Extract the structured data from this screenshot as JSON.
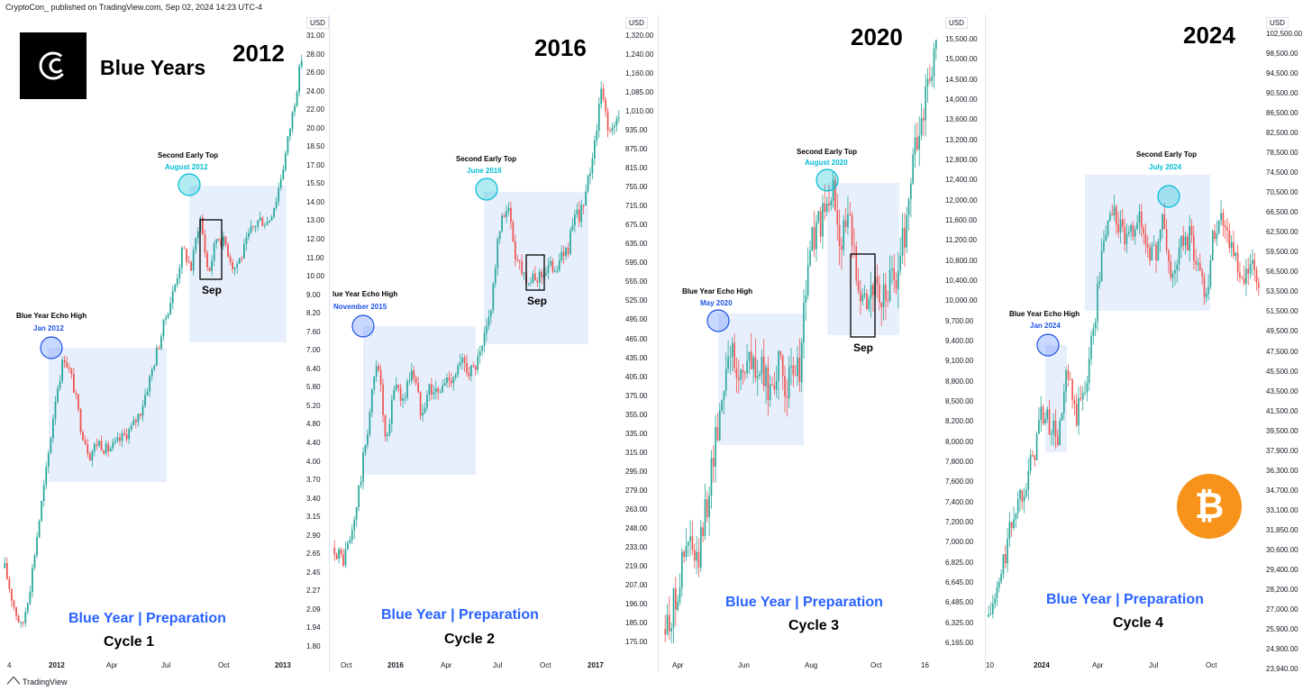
{
  "header": {
    "publisher": "CryptoCon_ published on TradingView.com, Sep 02, 2024 14:23 UTC-4"
  },
  "footer": {
    "brand": "TradingView"
  },
  "brand": {
    "title": "Blue Years",
    "logo_icon": "cryptocon-logo-icon"
  },
  "colors": {
    "up": "#26a69a",
    "down": "#ef5350",
    "range_fill": "#e8effc",
    "circle_blue": "#1e53e5",
    "circle_cyan": "#00bcd4",
    "text_blue": "#2962ff",
    "btc": "#f7931a"
  },
  "chart_data": [
    {
      "type": "candlestick",
      "title": "2012",
      "unit": "USD",
      "y_scale": "log",
      "ylim": [
        1.8,
        31.0
      ],
      "yticks": [
        "31.00",
        "28.00",
        "26.00",
        "24.00",
        "22.00",
        "20.00",
        "18.50",
        "17.00",
        "15.50",
        "14.00",
        "13.00",
        "12.00",
        "11.00",
        "10.00",
        "9.00",
        "8.20",
        "7.60",
        "7.00",
        "6.40",
        "5.80",
        "5.20",
        "4.80",
        "4.40",
        "4.00",
        "3.70",
        "3.40",
        "3.15",
        "2.90",
        "2.65",
        "2.45",
        "2.27",
        "2.09",
        "1.94",
        "1.80"
      ],
      "xticks": [
        {
          "label": "4",
          "bold": false
        },
        {
          "label": "2012",
          "bold": true
        },
        {
          "label": "Apr",
          "bold": false
        },
        {
          "label": "Jul",
          "bold": false
        },
        {
          "label": "Oct",
          "bold": false
        },
        {
          "label": "2013",
          "bold": true
        }
      ],
      "echo_high": {
        "label": "Blue Year Echo High",
        "date": "Jan 2012"
      },
      "early_top": {
        "label": "Second Early Top",
        "date": "August 2012"
      },
      "sep_label": "Sep",
      "caption": "Blue Year | Preparation",
      "cycle": "Cycle 1",
      "path": [
        2.6,
        2.2,
        1.95,
        2.4,
        3.2,
        4.2,
        5.8,
        7.0,
        6.2,
        5.0,
        4.4,
        4.7,
        4.5,
        4.6,
        4.8,
        5.0,
        5.4,
        6.2,
        7.2,
        8.4,
        9.6,
        11.5,
        10.5,
        13.5,
        10.2,
        12.2,
        11.8,
        10.5,
        11.2,
        12.5,
        13.2,
        13.0,
        14.5,
        17.5,
        22.0,
        28.0
      ]
    },
    {
      "type": "candlestick",
      "title": "2016",
      "unit": "USD",
      "y_scale": "log",
      "ylim": [
        175.0,
        1320.0
      ],
      "yticks": [
        "1,320.00",
        "1,240.00",
        "1,160.00",
        "1,085.00",
        "1,010.00",
        "935.00",
        "875.00",
        "815.00",
        "755.00",
        "715.00",
        "675.00",
        "635.00",
        "595.00",
        "555.00",
        "525.00",
        "495.00",
        "465.00",
        "435.00",
        "405.00",
        "375.00",
        "355.00",
        "335.00",
        "315.00",
        "295.00",
        "279.00",
        "263.00",
        "248.00",
        "233.00",
        "219.00",
        "207.00",
        "196.00",
        "185.00",
        "175.00"
      ],
      "xticks": [
        {
          "label": "Oct",
          "bold": false
        },
        {
          "label": "2016",
          "bold": true
        },
        {
          "label": "Apr",
          "bold": false
        },
        {
          "label": "Jul",
          "bold": false
        },
        {
          "label": "Oct",
          "bold": false
        },
        {
          "label": "2017",
          "bold": true
        }
      ],
      "echo_high": {
        "label": "lue Year Echo High",
        "date": "November 2015"
      },
      "early_top": {
        "label": "Second Early Top",
        "date": "June 2016"
      },
      "sep_label": "Sep",
      "caption": "Blue Year | Preparation",
      "cycle": "Cycle 2",
      "path": [
        240,
        230,
        250,
        300,
        370,
        460,
        330,
        420,
        390,
        440,
        380,
        410,
        400,
        420,
        430,
        445,
        430,
        455,
        520,
        670,
        760,
        640,
        600,
        580,
        600,
        610,
        620,
        650,
        720,
        750,
        900,
        1100,
        950,
        1000
      ]
    },
    {
      "type": "candlestick",
      "title": "2020",
      "unit": "USD",
      "y_scale": "log",
      "ylim": [
        6165.0,
        15500.0
      ],
      "yticks": [
        "15,500.00",
        "15,000.00",
        "14,500.00",
        "14,000.00",
        "13,600.00",
        "13,200.00",
        "12,800.00",
        "12,400.00",
        "12,000.00",
        "11,600.00",
        "11,200.00",
        "10,800.00",
        "10,400.00",
        "10,000.00",
        "9,700.00",
        "9,400.00",
        "9,100.00",
        "8,800.00",
        "8,500.00",
        "8,200.00",
        "8,000.00",
        "7,800.00",
        "7,600.00",
        "7,400.00",
        "7,200.00",
        "7,000.00",
        "6,825.00",
        "6,645.00",
        "6,485.00",
        "6,325.00",
        "6,165.00"
      ],
      "xticks": [
        {
          "label": "Apr",
          "bold": false
        },
        {
          "label": "Jun",
          "bold": false
        },
        {
          "label": "Aug",
          "bold": false
        },
        {
          "label": "Oct",
          "bold": false
        },
        {
          "label": "16",
          "bold": false
        }
      ],
      "echo_high": {
        "label": "Blue Year Echo High",
        "date": "May 2020"
      },
      "early_top": {
        "label": "Second Early Top",
        "date": "August 2020"
      },
      "sep_label": "Sep",
      "caption": "Blue Year | Preparation",
      "cycle": "Cycle 3",
      "path": [
        6300,
        6500,
        6900,
        7200,
        6900,
        7500,
        8200,
        8900,
        9800,
        9200,
        9500,
        9400,
        9300,
        9100,
        9400,
        9200,
        9150,
        9500,
        11200,
        11600,
        11800,
        12300,
        11500,
        11700,
        11000,
        10400,
        10700,
        10300,
        10600,
        10800,
        11500,
        12800,
        13600,
        14500,
        15500
      ]
    },
    {
      "type": "candlestick",
      "title": "2024",
      "unit": "USD",
      "y_scale": "log",
      "ylim": [
        23940.0,
        102500.0
      ],
      "yticks": [
        "102,500.00",
        "98,500.00",
        "94,500.00",
        "90,500.00",
        "86,500.00",
        "82,500.00",
        "78,500.00",
        "74,500.00",
        "70,500.00",
        "66,500.00",
        "62,500.00",
        "59,500.00",
        "56,500.00",
        "53,500.00",
        "51,500.00",
        "49,500.00",
        "47,500.00",
        "45,500.00",
        "43,500.00",
        "41,500.00",
        "39,500.00",
        "37,900.00",
        "36,300.00",
        "34,700.00",
        "33,100.00",
        "31,850.00",
        "30,600.00",
        "29,400.00",
        "28,200.00",
        "27,000.00",
        "25,900.00",
        "24,900.00",
        "23,940.00"
      ],
      "xticks": [
        {
          "label": "10",
          "bold": false
        },
        {
          "label": "2024",
          "bold": true
        },
        {
          "label": "Apr",
          "bold": false
        },
        {
          "label": "Jul",
          "bold": false
        },
        {
          "label": "Oct",
          "bold": false
        }
      ],
      "echo_high": {
        "label": "Blue Year Echo High",
        "date": "Jan 2024"
      },
      "early_top": {
        "label": "Second Early Top",
        "date": "July 2024"
      },
      "sep_label": "",
      "caption": "Blue Year | Preparation",
      "cycle": "Cycle 4",
      "path": [
        27000,
        28500,
        31500,
        34500,
        36500,
        38500,
        43000,
        42000,
        40500,
        47000,
        42500,
        45500,
        52000,
        62000,
        69000,
        66000,
        63000,
        68000,
        64000,
        61500,
        67000,
        58000,
        63000,
        64500,
        60500,
        57000,
        66500,
        67500,
        63000,
        57000,
        60000,
        58000
      ]
    }
  ]
}
